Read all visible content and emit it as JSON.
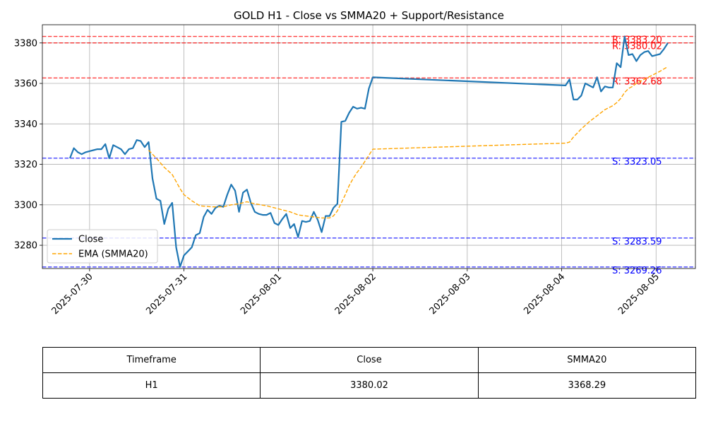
{
  "chart_data": {
    "type": "line",
    "title": "GOLD H1 - Close vs SMMA20 + Support/Resistance",
    "xlabel": "",
    "ylabel": "",
    "x_ticks": [
      "2025-07-30",
      "2025-07-31",
      "2025-08-01",
      "2025-08-02",
      "2025-08-03",
      "2025-08-04",
      "2025-08-05"
    ],
    "y_ticks": [
      3280,
      3300,
      3320,
      3340,
      3360,
      3380
    ],
    "xlim": [
      "2025-07-29T12:00",
      "2025-08-05T10:00"
    ],
    "ylim": [
      3268.5,
      3389
    ],
    "grid": true,
    "legend_position": "center-left",
    "series": [
      {
        "name": "Close",
        "color": "#1f77b4",
        "style": "solid",
        "points": [
          [
            "2025-07-29T19:00",
            3323
          ],
          [
            "2025-07-29T20:00",
            3328
          ],
          [
            "2025-07-29T21:00",
            3326
          ],
          [
            "2025-07-29T22:00",
            3325
          ],
          [
            "2025-07-29T23:00",
            3326
          ],
          [
            "2025-07-30T01:00",
            3327
          ],
          [
            "2025-07-30T02:00",
            3327.5
          ],
          [
            "2025-07-30T03:00",
            3327.5
          ],
          [
            "2025-07-30T04:00",
            3330
          ],
          [
            "2025-07-30T05:00",
            3323
          ],
          [
            "2025-07-30T06:00",
            3329.5
          ],
          [
            "2025-07-30T07:00",
            3328.5
          ],
          [
            "2025-07-30T08:00",
            3327.5
          ],
          [
            "2025-07-30T09:00",
            3325
          ],
          [
            "2025-07-30T10:00",
            3327.5
          ],
          [
            "2025-07-30T11:00",
            3328
          ],
          [
            "2025-07-30T12:00",
            3332
          ],
          [
            "2025-07-30T13:00",
            3331.5
          ],
          [
            "2025-07-30T14:00",
            3328.5
          ],
          [
            "2025-07-30T15:00",
            3331
          ],
          [
            "2025-07-30T16:00",
            3313
          ],
          [
            "2025-07-30T17:00",
            3303
          ],
          [
            "2025-07-30T18:00",
            3302
          ],
          [
            "2025-07-30T19:00",
            3290.5
          ],
          [
            "2025-07-30T20:00",
            3298
          ],
          [
            "2025-07-30T21:00",
            3301
          ],
          [
            "2025-07-30T22:00",
            3279
          ],
          [
            "2025-07-30T23:00",
            3269.3
          ],
          [
            "2025-07-31T00:00",
            3275
          ],
          [
            "2025-07-31T01:00",
            3277
          ],
          [
            "2025-07-31T02:00",
            3279
          ],
          [
            "2025-07-31T03:00",
            3285
          ],
          [
            "2025-07-31T04:00",
            3286
          ],
          [
            "2025-07-31T05:00",
            3294
          ],
          [
            "2025-07-31T06:00",
            3297.5
          ],
          [
            "2025-07-31T07:00",
            3295.5
          ],
          [
            "2025-07-31T08:00",
            3298.5
          ],
          [
            "2025-07-31T09:00",
            3299.5
          ],
          [
            "2025-07-31T10:00",
            3299
          ],
          [
            "2025-07-31T11:00",
            3305
          ],
          [
            "2025-07-31T12:00",
            3310
          ],
          [
            "2025-07-31T13:00",
            3307
          ],
          [
            "2025-07-31T14:00",
            3296.5
          ],
          [
            "2025-07-31T15:00",
            3306
          ],
          [
            "2025-07-31T16:00",
            3307.5
          ],
          [
            "2025-07-31T17:00",
            3301
          ],
          [
            "2025-07-31T18:00",
            3296.5
          ],
          [
            "2025-07-31T19:00",
            3295.5
          ],
          [
            "2025-07-31T20:00",
            3295
          ],
          [
            "2025-07-31T21:00",
            3295
          ],
          [
            "2025-07-31T22:00",
            3296
          ],
          [
            "2025-07-31T23:00",
            3291
          ],
          [
            "2025-08-01T00:00",
            3290
          ],
          [
            "2025-08-01T01:00",
            3293
          ],
          [
            "2025-08-01T02:00",
            3295.5
          ],
          [
            "2025-08-01T03:00",
            3288.5
          ],
          [
            "2025-08-01T04:00",
            3290.5
          ],
          [
            "2025-08-01T05:00",
            3284
          ],
          [
            "2025-08-01T06:00",
            3292
          ],
          [
            "2025-08-01T07:00",
            3291.5
          ],
          [
            "2025-08-01T08:00",
            3292
          ],
          [
            "2025-08-01T09:00",
            3296.5
          ],
          [
            "2025-08-01T10:00",
            3292.5
          ],
          [
            "2025-08-01T11:00",
            3286.5
          ],
          [
            "2025-08-01T12:00",
            3294.5
          ],
          [
            "2025-08-01T13:00",
            3294.5
          ],
          [
            "2025-08-01T14:00",
            3298.5
          ],
          [
            "2025-08-01T15:00",
            3300.5
          ],
          [
            "2025-08-01T16:00",
            3341
          ],
          [
            "2025-08-01T17:00",
            3341.5
          ],
          [
            "2025-08-01T18:00",
            3345.5
          ],
          [
            "2025-08-01T19:00",
            3348.5
          ],
          [
            "2025-08-01T20:00",
            3347.5
          ],
          [
            "2025-08-01T21:00",
            3348
          ],
          [
            "2025-08-01T22:00",
            3347.5
          ],
          [
            "2025-08-01T23:00",
            3357.5
          ],
          [
            "2025-08-02T00:00",
            3363
          ],
          [
            "2025-08-04T01:00",
            3359
          ],
          [
            "2025-08-04T02:00",
            3362
          ],
          [
            "2025-08-04T03:00",
            3352
          ],
          [
            "2025-08-04T04:00",
            3352
          ],
          [
            "2025-08-04T05:00",
            3354
          ],
          [
            "2025-08-04T06:00",
            3360
          ],
          [
            "2025-08-04T07:00",
            3359
          ],
          [
            "2025-08-04T08:00",
            3358
          ],
          [
            "2025-08-04T09:00",
            3363
          ],
          [
            "2025-08-04T10:00",
            3356
          ],
          [
            "2025-08-04T11:00",
            3358.5
          ],
          [
            "2025-08-04T12:00",
            3358
          ],
          [
            "2025-08-04T13:00",
            3358
          ],
          [
            "2025-08-04T14:00",
            3370
          ],
          [
            "2025-08-04T15:00",
            3368
          ],
          [
            "2025-08-04T16:00",
            3383.2
          ],
          [
            "2025-08-04T17:00",
            3374
          ],
          [
            "2025-08-04T18:00",
            3374.5
          ],
          [
            "2025-08-04T19:00",
            3371
          ],
          [
            "2025-08-04T20:00",
            3374
          ],
          [
            "2025-08-04T21:00",
            3375.5
          ],
          [
            "2025-08-04T22:00",
            3376
          ],
          [
            "2025-08-04T23:00",
            3373.5
          ],
          [
            "2025-08-05T00:00",
            3374
          ],
          [
            "2025-08-05T01:00",
            3374.5
          ],
          [
            "2025-08-05T02:00",
            3377
          ],
          [
            "2025-08-05T03:00",
            3380
          ]
        ]
      },
      {
        "name": "EMA (SMMA20)",
        "color": "#ffa500",
        "style": "dashed",
        "points": [
          [
            "2025-07-30T15:00",
            3327
          ],
          [
            "2025-07-30T17:00",
            3323
          ],
          [
            "2025-07-30T19:00",
            3318.5
          ],
          [
            "2025-07-30T21:00",
            3315
          ],
          [
            "2025-07-30T23:00",
            3308
          ],
          [
            "2025-07-31T00:00",
            3305
          ],
          [
            "2025-07-31T02:00",
            3302
          ],
          [
            "2025-07-31T04:00",
            3299.5
          ],
          [
            "2025-07-31T07:00",
            3299
          ],
          [
            "2025-07-31T10:00",
            3299
          ],
          [
            "2025-07-31T12:00",
            3300
          ],
          [
            "2025-07-31T14:00",
            3300.5
          ],
          [
            "2025-07-31T16:00",
            3301.5
          ],
          [
            "2025-07-31T18:00",
            3300.5
          ],
          [
            "2025-07-31T21:00",
            3299.5
          ],
          [
            "2025-07-31T23:00",
            3298.5
          ],
          [
            "2025-08-01T01:00",
            3297.5
          ],
          [
            "2025-08-01T03:00",
            3296.5
          ],
          [
            "2025-08-01T05:00",
            3295
          ],
          [
            "2025-08-01T07:00",
            3294.5
          ],
          [
            "2025-08-01T09:00",
            3294
          ],
          [
            "2025-08-01T11:00",
            3293.5
          ],
          [
            "2025-08-01T13:00",
            3293.5
          ],
          [
            "2025-08-01T14:00",
            3294.5
          ],
          [
            "2025-08-01T15:00",
            3297
          ],
          [
            "2025-08-01T16:00",
            3301
          ],
          [
            "2025-08-01T17:00",
            3305
          ],
          [
            "2025-08-01T18:00",
            3309.5
          ],
          [
            "2025-08-01T19:00",
            3313
          ],
          [
            "2025-08-01T20:00",
            3316
          ],
          [
            "2025-08-01T21:00",
            3318.5
          ],
          [
            "2025-08-01T22:00",
            3321.5
          ],
          [
            "2025-08-01T23:00",
            3324.5
          ],
          [
            "2025-08-02T00:00",
            3327.5
          ],
          [
            "2025-08-04T01:00",
            3330.5
          ],
          [
            "2025-08-04T02:00",
            3331
          ],
          [
            "2025-08-04T03:00",
            3333.5
          ],
          [
            "2025-08-04T05:00",
            3337.5
          ],
          [
            "2025-08-04T07:00",
            3341
          ],
          [
            "2025-08-04T09:00",
            3344
          ],
          [
            "2025-08-04T11:00",
            3347
          ],
          [
            "2025-08-04T13:00",
            3349
          ],
          [
            "2025-08-04T14:00",
            3350.5
          ],
          [
            "2025-08-04T15:00",
            3352.5
          ],
          [
            "2025-08-04T16:00",
            3355.5
          ],
          [
            "2025-08-04T17:00",
            3357.5
          ],
          [
            "2025-08-04T18:00",
            3358.5
          ],
          [
            "2025-08-04T19:00",
            3360
          ],
          [
            "2025-08-04T21:00",
            3362
          ],
          [
            "2025-08-04T23:00",
            3364
          ],
          [
            "2025-08-05T01:00",
            3366
          ],
          [
            "2025-08-05T03:00",
            3368.29
          ]
        ]
      }
    ],
    "levels": [
      {
        "kind": "resistance",
        "value": 3383.2,
        "label": "R: 3383.20",
        "color": "#ff0000"
      },
      {
        "kind": "resistance",
        "value": 3380.02,
        "label": "R: 3380.02",
        "color": "#ff0000"
      },
      {
        "kind": "resistance",
        "value": 3362.68,
        "label": "R: 3362.68",
        "color": "#ff0000"
      },
      {
        "kind": "support",
        "value": 3323.05,
        "label": "S: 3323.05",
        "color": "#0000ff"
      },
      {
        "kind": "support",
        "value": 3283.59,
        "label": "S: 3283.59",
        "color": "#0000ff"
      },
      {
        "kind": "support",
        "value": 3269.26,
        "label": "S: 3269.26",
        "color": "#0000ff"
      }
    ]
  },
  "table": {
    "headers": [
      "Timeframe",
      "Close",
      "SMMA20"
    ],
    "row": [
      "H1",
      "3380.02",
      "3368.29"
    ]
  }
}
